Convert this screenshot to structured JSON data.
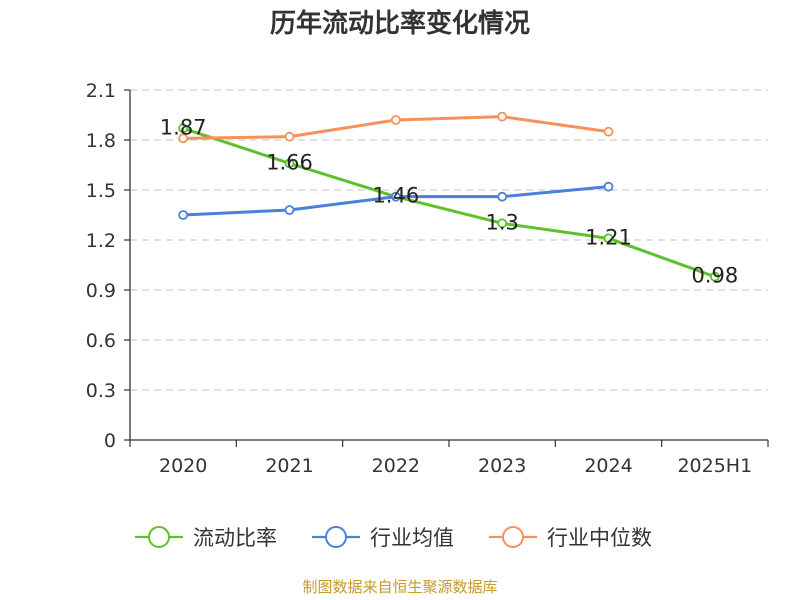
{
  "title": "历年流动比率变化情况",
  "source_note": "制图数据来自恒生聚源数据库",
  "chart_data": {
    "type": "line",
    "categories": [
      "2020",
      "2021",
      "2022",
      "2023",
      "2024",
      "2025H1"
    ],
    "ylim": [
      0,
      2.1
    ],
    "yticks": [
      0,
      0.3,
      0.6,
      0.9,
      1.2,
      1.5,
      1.8,
      2.1
    ],
    "ytick_labels": [
      "0",
      "0.3",
      "0.6",
      "0.9",
      "1.2",
      "1.5",
      "1.8",
      "2.1"
    ],
    "grid": true,
    "legend_position": "bottom",
    "series": [
      {
        "name": "流动比率",
        "color": "#5cc12a",
        "values": [
          1.87,
          1.66,
          1.46,
          1.3,
          1.21,
          0.98
        ],
        "labels": [
          "1.87",
          "1.66",
          "1.46",
          "1.3",
          "1.21",
          "0.98"
        ]
      },
      {
        "name": "行业均值",
        "color": "#4a7fdb",
        "values": [
          1.35,
          1.38,
          1.46,
          1.46,
          1.52,
          null
        ]
      },
      {
        "name": "行业中位数",
        "color": "#f4925a",
        "values": [
          1.81,
          1.82,
          1.92,
          1.94,
          1.85,
          null
        ]
      }
    ]
  }
}
